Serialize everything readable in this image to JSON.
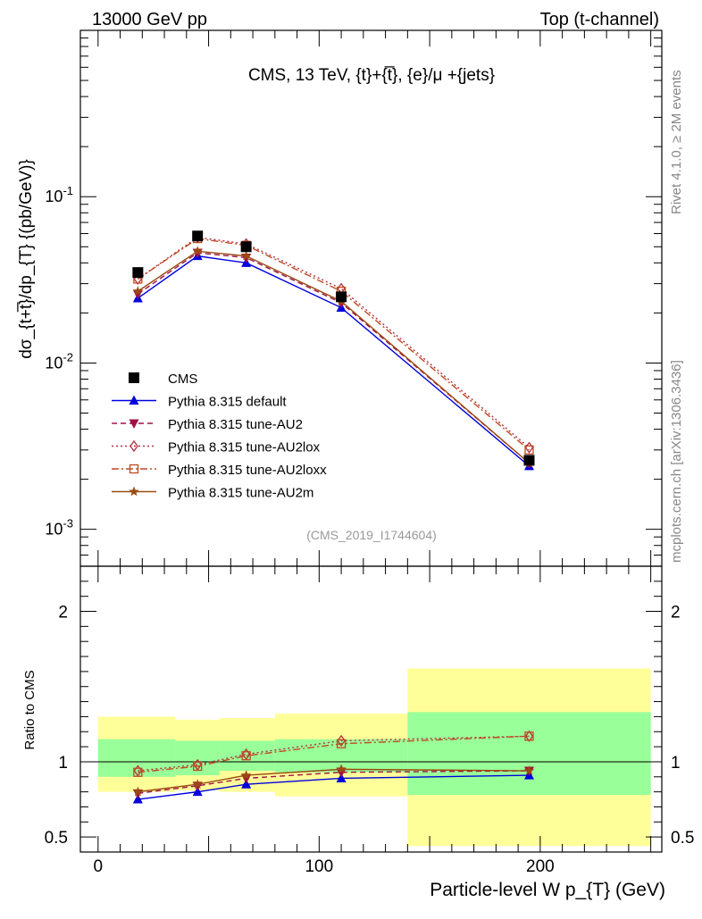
{
  "header": {
    "left": "13000 GeV pp",
    "right": "Top (t-channel)"
  },
  "side_labels": {
    "rivet": "Rivet 4.1.0, ≥ 2M events",
    "source": "mcplots.cern.ch [arXiv:1306.3436]"
  },
  "chart_data": {
    "type": "line",
    "title": "CMS, 13 TeV, {t}+{t̅}, {e}/μ +{jets}",
    "watermark": "(CMS_2019_I1744604)",
    "xlabel": "Particle-level W p_{T} (GeV)",
    "ylabel": "dσ_{t+t̅}/dp_{T}  {(pb/GeV)}",
    "ratio_ylabel": "Ratio to CMS",
    "xlim": [
      -8,
      255
    ],
    "ylim": [
      0.0006,
      1.0
    ],
    "yscale": "log",
    "ratio_ylim": [
      0.4,
      2.3
    ],
    "x_ticks": [
      0,
      100,
      200
    ],
    "y_tick_labels": [
      "10^{-1}",
      "10^{-2}",
      "10^{-3}"
    ],
    "ratio_ticks": [
      0.5,
      1,
      2
    ],
    "bin_edges": [
      0,
      35,
      55,
      80,
      140,
      250
    ],
    "x": [
      18,
      45,
      67,
      110,
      195
    ],
    "data": {
      "name": "CMS",
      "values": [
        0.035,
        0.058,
        0.05,
        0.025,
        0.0026
      ],
      "band_inner": [
        [
          0.9,
          1.15
        ],
        [
          0.91,
          1.14
        ],
        [
          0.94,
          1.14
        ],
        [
          0.93,
          1.15
        ],
        [
          0.78,
          1.33
        ]
      ],
      "band_outer": [
        [
          0.8,
          1.3
        ],
        [
          0.81,
          1.28
        ],
        [
          0.8,
          1.29
        ],
        [
          0.77,
          1.32
        ],
        [
          0.44,
          1.62
        ]
      ]
    },
    "series": [
      {
        "name": "Pythia 8.315 default",
        "color": "#0000dd",
        "marker": "triangle-up",
        "dash": "",
        "values": [
          0.0245,
          0.044,
          0.04,
          0.0215,
          0.0024
        ],
        "ratio": [
          0.75,
          0.8,
          0.85,
          0.89,
          0.91
        ]
      },
      {
        "name": "Pythia 8.315 tune-AU2",
        "color": "#a01048",
        "marker": "triangle-down",
        "dash": "6,4",
        "values": [
          0.026,
          0.046,
          0.043,
          0.023,
          0.0025
        ],
        "ratio": [
          0.79,
          0.84,
          0.89,
          0.93,
          0.94
        ]
      },
      {
        "name": "Pythia 8.315 tune-AU2lox",
        "color": "#b03040",
        "marker": "diamond-open",
        "dash": "2,3",
        "values": [
          0.032,
          0.057,
          0.052,
          0.028,
          0.0031
        ],
        "ratio": [
          0.94,
          0.98,
          1.05,
          1.14,
          1.17
        ]
      },
      {
        "name": "Pythia 8.315 tune-AU2loxx",
        "color": "#c04a20",
        "marker": "square-open",
        "dash": "8,3,2,3",
        "values": [
          0.032,
          0.056,
          0.051,
          0.027,
          0.003
        ],
        "ratio": [
          0.93,
          0.97,
          1.04,
          1.12,
          1.17
        ]
      },
      {
        "name": "Pythia 8.315 tune-AU2m",
        "color": "#9a4a10",
        "marker": "star",
        "dash": "",
        "values": [
          0.027,
          0.047,
          0.044,
          0.0235,
          0.0025
        ],
        "ratio": [
          0.8,
          0.85,
          0.91,
          0.95,
          0.94
        ]
      }
    ],
    "legend_position": "bottom-left"
  }
}
